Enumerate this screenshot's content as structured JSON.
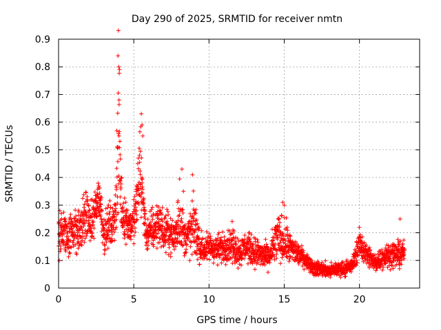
{
  "chart_data": {
    "type": "scatter",
    "title": "Day 290 of 2025, SRMTID for receiver nmtn",
    "xlabel": "GPS time / hours",
    "ylabel": "SRMTID / TECUs",
    "xlim": [
      0,
      24
    ],
    "ylim": [
      0,
      0.9
    ],
    "xticks": [
      0,
      5,
      10,
      15,
      20
    ],
    "yticks": [
      0,
      0.1,
      0.2,
      0.3,
      0.4,
      0.5,
      0.6,
      0.7,
      0.8,
      0.9
    ],
    "xtick_labels": [
      "0",
      "5",
      "10",
      "15",
      "20"
    ],
    "ytick_labels": [
      "0",
      "0.1",
      "0.2",
      "0.3",
      "0.4",
      "0.5",
      "0.6",
      "0.7",
      "0.8",
      "0.9"
    ],
    "grid": true,
    "marker": "+",
    "marker_color": "#ff0000",
    "series": [
      {
        "name": "SRMTID",
        "profile_x": [
          0.0,
          0.2,
          0.4,
          0.6,
          0.8,
          1.0,
          1.2,
          1.4,
          1.6,
          1.8,
          2.0,
          2.2,
          2.4,
          2.6,
          2.8,
          3.0,
          3.2,
          3.4,
          3.6,
          3.8,
          4.0,
          4.2,
          4.4,
          4.6,
          4.8,
          5.0,
          5.2,
          5.4,
          5.6,
          5.8,
          6.0,
          6.2,
          6.4,
          6.6,
          6.8,
          7.0,
          7.2,
          7.4,
          7.6,
          7.8,
          8.0,
          8.2,
          8.4,
          8.6,
          8.8,
          9.0,
          9.2,
          9.4,
          9.6,
          9.8,
          10.0,
          10.5,
          11.0,
          11.5,
          12.0,
          12.5,
          13.0,
          13.5,
          14.0,
          14.5,
          15.0,
          15.5,
          16.0,
          16.5,
          17.0,
          17.5,
          18.0,
          18.5,
          19.0,
          19.5,
          20.0,
          20.5,
          21.0,
          21.5,
          22.0,
          22.5,
          23.0
        ],
        "profile_mean": [
          0.19,
          0.21,
          0.2,
          0.19,
          0.2,
          0.22,
          0.2,
          0.21,
          0.23,
          0.26,
          0.25,
          0.22,
          0.27,
          0.33,
          0.3,
          0.2,
          0.21,
          0.23,
          0.22,
          0.3,
          0.55,
          0.28,
          0.25,
          0.24,
          0.22,
          0.24,
          0.3,
          0.45,
          0.32,
          0.2,
          0.19,
          0.22,
          0.21,
          0.24,
          0.23,
          0.19,
          0.21,
          0.2,
          0.18,
          0.2,
          0.27,
          0.22,
          0.18,
          0.19,
          0.2,
          0.22,
          0.19,
          0.15,
          0.14,
          0.14,
          0.15,
          0.14,
          0.15,
          0.16,
          0.13,
          0.15,
          0.13,
          0.12,
          0.11,
          0.18,
          0.17,
          0.14,
          0.12,
          0.1,
          0.07,
          0.07,
          0.06,
          0.07,
          0.07,
          0.08,
          0.16,
          0.12,
          0.09,
          0.11,
          0.12,
          0.12,
          0.13
        ],
        "profile_spread": [
          0.07,
          0.07,
          0.06,
          0.06,
          0.06,
          0.06,
          0.07,
          0.07,
          0.07,
          0.07,
          0.06,
          0.06,
          0.07,
          0.06,
          0.05,
          0.06,
          0.05,
          0.06,
          0.06,
          0.07,
          0.27,
          0.06,
          0.06,
          0.05,
          0.05,
          0.06,
          0.08,
          0.17,
          0.06,
          0.05,
          0.05,
          0.06,
          0.06,
          0.06,
          0.06,
          0.05,
          0.05,
          0.05,
          0.05,
          0.06,
          0.12,
          0.07,
          0.05,
          0.05,
          0.08,
          0.09,
          0.06,
          0.05,
          0.04,
          0.04,
          0.04,
          0.04,
          0.04,
          0.05,
          0.04,
          0.04,
          0.04,
          0.04,
          0.03,
          0.07,
          0.06,
          0.04,
          0.03,
          0.02,
          0.02,
          0.02,
          0.02,
          0.02,
          0.02,
          0.02,
          0.04,
          0.03,
          0.03,
          0.03,
          0.03,
          0.04,
          0.03
        ],
        "x": [
          3.95,
          4.0,
          4.05,
          4.02,
          5.5,
          5.55,
          5.6,
          8.2,
          8.9,
          8.3,
          14.9,
          15.0,
          22.7
        ]
      }
    ],
    "y": [
      0.84,
      0.8,
      0.79,
      0.68,
      0.63,
      0.59,
      0.55,
      0.43,
      0.41,
      0.35,
      0.31,
      0.3,
      0.25
    ]
  }
}
